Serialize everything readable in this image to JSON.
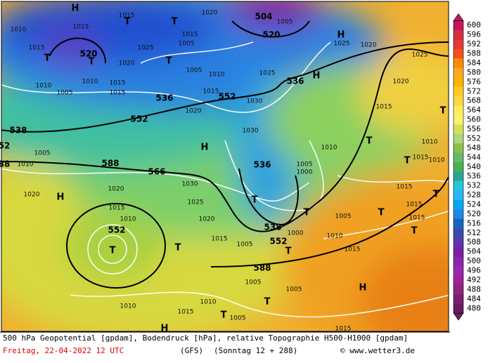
{
  "map": {
    "labels": [
      "H",
      "1015",
      "T",
      "1020",
      "T",
      "504",
      "1005",
      "520",
      "H",
      "1025",
      "1020",
      "1010",
      "1015",
      "1015",
      "T",
      "520",
      "T",
      "1025",
      "T",
      "1015",
      "1005",
      "1025",
      "1020",
      "1005",
      "1010",
      "1025",
      "H",
      "536",
      "1010",
      "1010",
      "1015",
      "1015",
      "1005",
      "536",
      "552",
      "1015",
      "1020",
      "1030",
      "1020",
      "1015",
      "T",
      "538",
      "552",
      "1030",
      "T",
      "1010",
      "1010",
      "52",
      "1005",
      "H",
      "1015",
      "T",
      "1010",
      "88",
      "1010",
      "588",
      "536",
      "1005",
      "1000",
      "566",
      "1030",
      "1020",
      "H",
      "1020",
      "1015",
      "T",
      "T",
      "1025",
      "1015",
      "T",
      "1005",
      "T",
      "1015",
      "1015",
      "1020",
      "552",
      "1010",
      "538",
      "1000",
      "T",
      "552",
      "1015",
      "1010",
      "1005",
      "1015",
      "T",
      "T",
      "T",
      "588",
      "1005",
      "1005",
      "H",
      "1010",
      "1010",
      "T",
      "1015",
      "T",
      "1005",
      "H",
      "1015"
    ]
  },
  "colorbar": {
    "ticks": [
      600,
      596,
      592,
      588,
      584,
      580,
      576,
      572,
      568,
      564,
      560,
      556,
      552,
      548,
      544,
      540,
      536,
      532,
      528,
      524,
      520,
      516,
      512,
      508,
      504,
      500,
      496,
      492,
      488,
      484,
      480
    ],
    "colors": [
      "#c2185b",
      "#d32f3f",
      "#e53935",
      "#f4511e",
      "#fb8c00",
      "#ffa726",
      "#ffb300",
      "#ffca28",
      "#ffd740",
      "#ffee58",
      "#f4f46a",
      "#d4e157",
      "#aed581",
      "#8bc34a",
      "#66bb6a",
      "#4caf50",
      "#26a69a",
      "#26c6da",
      "#29b6f6",
      "#03a9f4",
      "#1e88e5",
      "#1565c0",
      "#3949ab",
      "#5e35b1",
      "#7b1fa2",
      "#8e24aa",
      "#9c27b0",
      "#a020a0",
      "#8e2480",
      "#7b1f70",
      "#6a1b60"
    ]
  },
  "caption": {
    "line1": "500 hPa Geopotential [gpdam], Bodendruck [hPa], relative Topographie H500-H1000 [gpdam]",
    "date": "Freitag, 22-04-2022  12 UTC",
    "model": "(GFS)",
    "run": "(Sonntag 12 + 288)",
    "credit": "© www.wetter3.de"
  }
}
